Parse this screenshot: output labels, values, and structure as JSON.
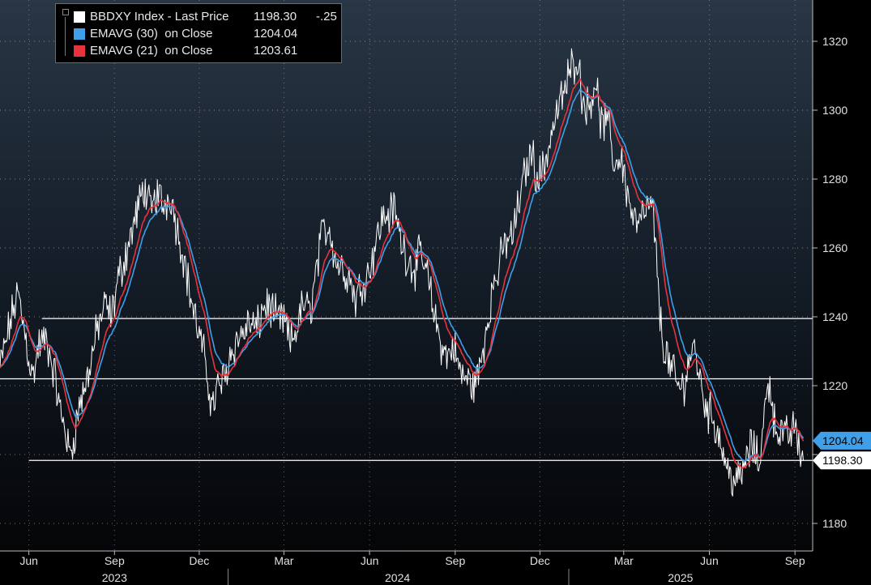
{
  "chart_data": {
    "type": "line",
    "ticker": "BBDXY Index",
    "y_axis_position": "right",
    "ylim": [
      1172,
      1332
    ],
    "yticks": [
      1180,
      1200,
      1220,
      1240,
      1260,
      1280,
      1300,
      1320
    ],
    "ytick_labels": [
      "1180",
      "1220",
      "1240",
      "1260",
      "1280",
      "1300",
      "1320"
    ],
    "xlim": [
      "2023-05-01",
      "2025-09-20"
    ],
    "x_ticks": [
      {
        "date": "2023-06-01",
        "label": "Jun"
      },
      {
        "date": "2023-09-01",
        "label": "Sep"
      },
      {
        "date": "2023-12-01",
        "label": "Dec"
      },
      {
        "date": "2024-03-01",
        "label": "Mar"
      },
      {
        "date": "2024-06-01",
        "label": "Jun"
      },
      {
        "date": "2024-09-01",
        "label": "Sep"
      },
      {
        "date": "2024-12-01",
        "label": "Dec"
      },
      {
        "date": "2025-03-01",
        "label": "Mar"
      },
      {
        "date": "2025-06-01",
        "label": "Jun"
      },
      {
        "date": "2025-09-01",
        "label": "Sep"
      }
    ],
    "year_labels": [
      {
        "date": "2023-09-01",
        "label": "2023"
      },
      {
        "date": "2024-07-01",
        "label": "2024"
      },
      {
        "date": "2025-05-01",
        "label": "2025"
      }
    ],
    "year_separators": [
      "2024-01-01",
      "2025-01-01"
    ],
    "horizontal_lines": [
      {
        "y": 1239.5,
        "from": "2023-06-15"
      },
      {
        "y": 1222,
        "from": "2023-05-01"
      },
      {
        "y": 1198.3,
        "from": "2023-06-01"
      }
    ],
    "price_points": [
      [
        "2023-05-01",
        1225
      ],
      [
        "2023-05-10",
        1236
      ],
      [
        "2023-05-20",
        1247
      ],
      [
        "2023-05-28",
        1235
      ],
      [
        "2023-06-05",
        1222
      ],
      [
        "2023-06-12",
        1232
      ],
      [
        "2023-06-20",
        1233
      ],
      [
        "2023-06-28",
        1224
      ],
      [
        "2023-07-05",
        1212
      ],
      [
        "2023-07-10",
        1208
      ],
      [
        "2023-07-14",
        1200
      ],
      [
        "2023-07-18",
        1203
      ],
      [
        "2023-07-25",
        1214
      ],
      [
        "2023-08-01",
        1220
      ],
      [
        "2023-08-08",
        1229
      ],
      [
        "2023-08-15",
        1238
      ],
      [
        "2023-08-22",
        1243
      ],
      [
        "2023-08-29",
        1240
      ],
      [
        "2023-09-05",
        1251
      ],
      [
        "2023-09-12",
        1257
      ],
      [
        "2023-09-20",
        1265
      ],
      [
        "2023-09-28",
        1273
      ],
      [
        "2023-10-03",
        1278
      ],
      [
        "2023-10-10",
        1270
      ],
      [
        "2023-10-17",
        1276
      ],
      [
        "2023-10-24",
        1272
      ],
      [
        "2023-10-31",
        1276
      ],
      [
        "2023-11-07",
        1266
      ],
      [
        "2023-11-14",
        1258
      ],
      [
        "2023-11-21",
        1247
      ],
      [
        "2023-11-28",
        1238
      ],
      [
        "2023-12-05",
        1230
      ],
      [
        "2023-12-10",
        1222
      ],
      [
        "2023-12-15",
        1214
      ],
      [
        "2023-12-22",
        1220
      ],
      [
        "2023-12-28",
        1222
      ],
      [
        "2024-01-04",
        1230
      ],
      [
        "2024-01-11",
        1233
      ],
      [
        "2024-01-18",
        1236
      ],
      [
        "2024-01-25",
        1238
      ],
      [
        "2024-02-01",
        1236
      ],
      [
        "2024-02-08",
        1243
      ],
      [
        "2024-02-15",
        1243
      ],
      [
        "2024-02-22",
        1239
      ],
      [
        "2024-03-01",
        1239
      ],
      [
        "2024-03-08",
        1232
      ],
      [
        "2024-03-15",
        1237
      ],
      [
        "2024-03-22",
        1244
      ],
      [
        "2024-03-29",
        1241
      ],
      [
        "2024-04-05",
        1254
      ],
      [
        "2024-04-12",
        1265
      ],
      [
        "2024-04-19",
        1266
      ],
      [
        "2024-04-26",
        1256
      ],
      [
        "2024-05-03",
        1254
      ],
      [
        "2024-05-10",
        1252
      ],
      [
        "2024-05-17",
        1245
      ],
      [
        "2024-05-24",
        1250
      ],
      [
        "2024-05-31",
        1253
      ],
      [
        "2024-06-07",
        1261
      ],
      [
        "2024-06-14",
        1268
      ],
      [
        "2024-06-21",
        1270
      ],
      [
        "2024-06-28",
        1271
      ],
      [
        "2024-07-05",
        1262
      ],
      [
        "2024-07-12",
        1257
      ],
      [
        "2024-07-19",
        1254
      ],
      [
        "2024-07-26",
        1258
      ],
      [
        "2024-08-02",
        1252
      ],
      [
        "2024-08-09",
        1241
      ],
      [
        "2024-08-16",
        1233
      ],
      [
        "2024-08-23",
        1228
      ],
      [
        "2024-08-30",
        1232
      ],
      [
        "2024-09-06",
        1224
      ],
      [
        "2024-09-13",
        1222
      ],
      [
        "2024-09-20",
        1220
      ],
      [
        "2024-09-27",
        1224
      ],
      [
        "2024-10-04",
        1236
      ],
      [
        "2024-10-11",
        1248
      ],
      [
        "2024-10-18",
        1254
      ],
      [
        "2024-10-25",
        1262
      ],
      [
        "2024-11-01",
        1263
      ],
      [
        "2024-11-08",
        1272
      ],
      [
        "2024-11-15",
        1282
      ],
      [
        "2024-11-22",
        1288
      ],
      [
        "2024-11-29",
        1280
      ],
      [
        "2024-12-06",
        1284
      ],
      [
        "2024-12-13",
        1293
      ],
      [
        "2024-12-20",
        1300
      ],
      [
        "2024-12-27",
        1305
      ],
      [
        "2025-01-03",
        1312
      ],
      [
        "2025-01-10",
        1316
      ],
      [
        "2025-01-15",
        1305
      ],
      [
        "2025-01-22",
        1300
      ],
      [
        "2025-01-29",
        1309
      ],
      [
        "2025-02-05",
        1296
      ],
      [
        "2025-02-12",
        1296
      ],
      [
        "2025-02-19",
        1284
      ],
      [
        "2025-02-26",
        1287
      ],
      [
        "2025-03-05",
        1276
      ],
      [
        "2025-03-12",
        1268
      ],
      [
        "2025-03-19",
        1267
      ],
      [
        "2025-03-26",
        1272
      ],
      [
        "2025-04-02",
        1270
      ],
      [
        "2025-04-07",
        1248
      ],
      [
        "2025-04-11",
        1234
      ],
      [
        "2025-04-18",
        1227
      ],
      [
        "2025-04-25",
        1222
      ],
      [
        "2025-05-02",
        1218
      ],
      [
        "2025-05-09",
        1226
      ],
      [
        "2025-05-16",
        1232
      ],
      [
        "2025-05-23",
        1220
      ],
      [
        "2025-05-30",
        1213
      ],
      [
        "2025-06-06",
        1210
      ],
      [
        "2025-06-13",
        1204
      ],
      [
        "2025-06-20",
        1196
      ],
      [
        "2025-06-27",
        1193
      ],
      [
        "2025-07-03",
        1192
      ],
      [
        "2025-07-10",
        1198
      ],
      [
        "2025-07-17",
        1203
      ],
      [
        "2025-07-24",
        1197
      ],
      [
        "2025-07-31",
        1214
      ],
      [
        "2025-08-05",
        1222
      ],
      [
        "2025-08-10",
        1209
      ],
      [
        "2025-08-17",
        1206
      ],
      [
        "2025-08-24",
        1205
      ],
      [
        "2025-08-31",
        1208
      ],
      [
        "2025-09-05",
        1203
      ],
      [
        "2025-09-10",
        1198.3
      ]
    ],
    "series": [
      {
        "name": "BBDXY Index - Last Price",
        "last": "1198.30",
        "change": "-.25",
        "color": "#ffffff",
        "kind": "price"
      },
      {
        "name": "EMAVG (30)  on Close",
        "last": "1204.04",
        "color": "#3f9fe8",
        "kind": "ema",
        "period": 30
      },
      {
        "name": "EMAVG (21)  on Close",
        "last": "1203.61",
        "color": "#e8323c",
        "kind": "ema",
        "period": 21
      }
    ],
    "last_value_tags": [
      {
        "value": 1204.04,
        "label": "1204.04",
        "bg": "#3f9fe8",
        "fg": "#000000"
      },
      {
        "value": 1198.3,
        "label": "1198.30",
        "bg": "#ffffff",
        "fg": "#000000"
      }
    ]
  }
}
